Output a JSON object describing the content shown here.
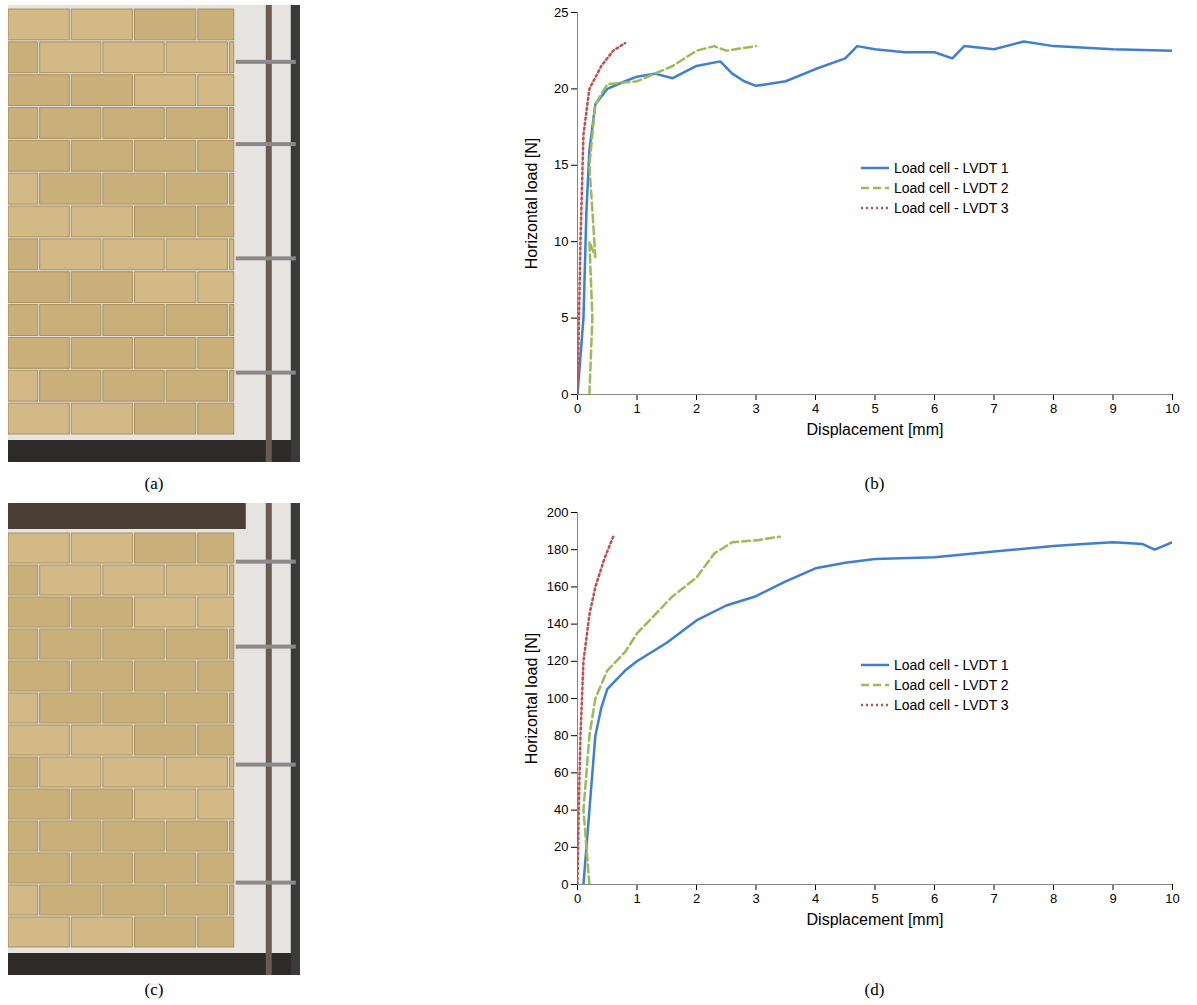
{
  "chart_data": [
    {
      "type": "line",
      "panel": "(b)",
      "xlabel": "Displacement [mm]",
      "ylabel": "Horizontal load [N]",
      "xlim": [
        0,
        10
      ],
      "xticks": [
        0,
        1,
        2,
        3,
        4,
        5,
        6,
        7,
        8,
        9,
        10
      ],
      "ylim": [
        0,
        25
      ],
      "yticks": [
        0,
        5,
        10,
        15,
        20,
        25
      ],
      "grid": false,
      "legend": "center",
      "series": [
        {
          "name": "Load cell - LVDT 1",
          "color": "#3f7fcf",
          "line_style": "solid",
          "x": [
            0,
            0.1,
            0.15,
            0.2,
            0.3,
            0.5,
            0.8,
            1.0,
            1.3,
            1.6,
            2.0,
            2.4,
            2.6,
            2.8,
            3.0,
            3.5,
            4.0,
            4.5,
            4.7,
            5.0,
            5.5,
            6.0,
            6.3,
            6.5,
            7.0,
            7.5,
            8.0,
            9.0,
            10
          ],
          "values": [
            0,
            5,
            12,
            16,
            19,
            20,
            20.5,
            20.8,
            21,
            20.7,
            21.5,
            21.8,
            21,
            20.5,
            20.2,
            20.5,
            21.3,
            22,
            22.8,
            22.6,
            22.4,
            22.4,
            22,
            22.8,
            22.6,
            23.1,
            22.8,
            22.6,
            22.5
          ]
        },
        {
          "name": "Load cell - LVDT 2",
          "color": "#9bbb59",
          "line_style": "dashed",
          "x": [
            0.2,
            0.25,
            0.2,
            0.3,
            0.2,
            0.3,
            0.5,
            1.0,
            1.3,
            1.6,
            2.0,
            2.3,
            2.5,
            3.0
          ],
          "values": [
            0,
            5,
            10,
            9,
            15,
            19,
            20.3,
            20.5,
            21,
            21.5,
            22.5,
            22.8,
            22.5,
            22.8
          ]
        },
        {
          "name": "Load cell - LVDT 3",
          "color": "#c0504d",
          "line_style": "dotted",
          "x": [
            0,
            0.05,
            0.1,
            0.2,
            0.4,
            0.6,
            0.8
          ],
          "values": [
            0,
            10,
            17,
            20,
            21.5,
            22.5,
            23
          ]
        }
      ]
    },
    {
      "type": "line",
      "panel": "(d)",
      "xlabel": "Displacement [mm]",
      "ylabel": "Horizontal load [N]",
      "xlim": [
        0,
        10
      ],
      "xticks": [
        0,
        1,
        2,
        3,
        4,
        5,
        6,
        7,
        8,
        9,
        10
      ],
      "ylim": [
        0,
        200
      ],
      "yticks": [
        0,
        20,
        40,
        60,
        80,
        100,
        120,
        140,
        160,
        180,
        200
      ],
      "grid": false,
      "legend": "center",
      "series": [
        {
          "name": "Load cell - LVDT 1",
          "color": "#3f7fcf",
          "line_style": "solid",
          "x": [
            0.1,
            0.15,
            0.2,
            0.25,
            0.3,
            0.4,
            0.5,
            0.8,
            1.0,
            1.5,
            2.0,
            2.5,
            3.0,
            3.5,
            4.0,
            4.5,
            5.0,
            6.0,
            7.0,
            8.0,
            8.5,
            9.0,
            9.5,
            9.7,
            10
          ],
          "values": [
            0,
            20,
            40,
            60,
            80,
            95,
            105,
            115,
            120,
            130,
            142,
            150,
            155,
            163,
            170,
            173,
            175,
            176,
            179,
            182,
            183,
            184,
            183,
            180,
            184
          ]
        },
        {
          "name": "Load cell - LVDT 2",
          "color": "#9bbb59",
          "line_style": "dashed",
          "x": [
            0.2,
            0.15,
            0.1,
            0.15,
            0.2,
            0.3,
            0.5,
            0.8,
            1.0,
            1.3,
            1.6,
            2.0,
            2.3,
            2.6,
            3.0,
            3.4
          ],
          "values": [
            0,
            20,
            40,
            60,
            80,
            100,
            115,
            125,
            135,
            145,
            155,
            165,
            178,
            184,
            185,
            187
          ]
        },
        {
          "name": "Load cell - LVDT 3",
          "color": "#c0504d",
          "line_style": "dotted",
          "x": [
            0,
            0.02,
            0.05,
            0.1,
            0.2,
            0.3,
            0.45,
            0.55,
            0.6
          ],
          "values": [
            0,
            40,
            80,
            120,
            145,
            160,
            175,
            183,
            187
          ]
        }
      ]
    }
  ],
  "images": [
    {
      "panel": "(a)"
    },
    {
      "panel": "(c)"
    }
  ]
}
